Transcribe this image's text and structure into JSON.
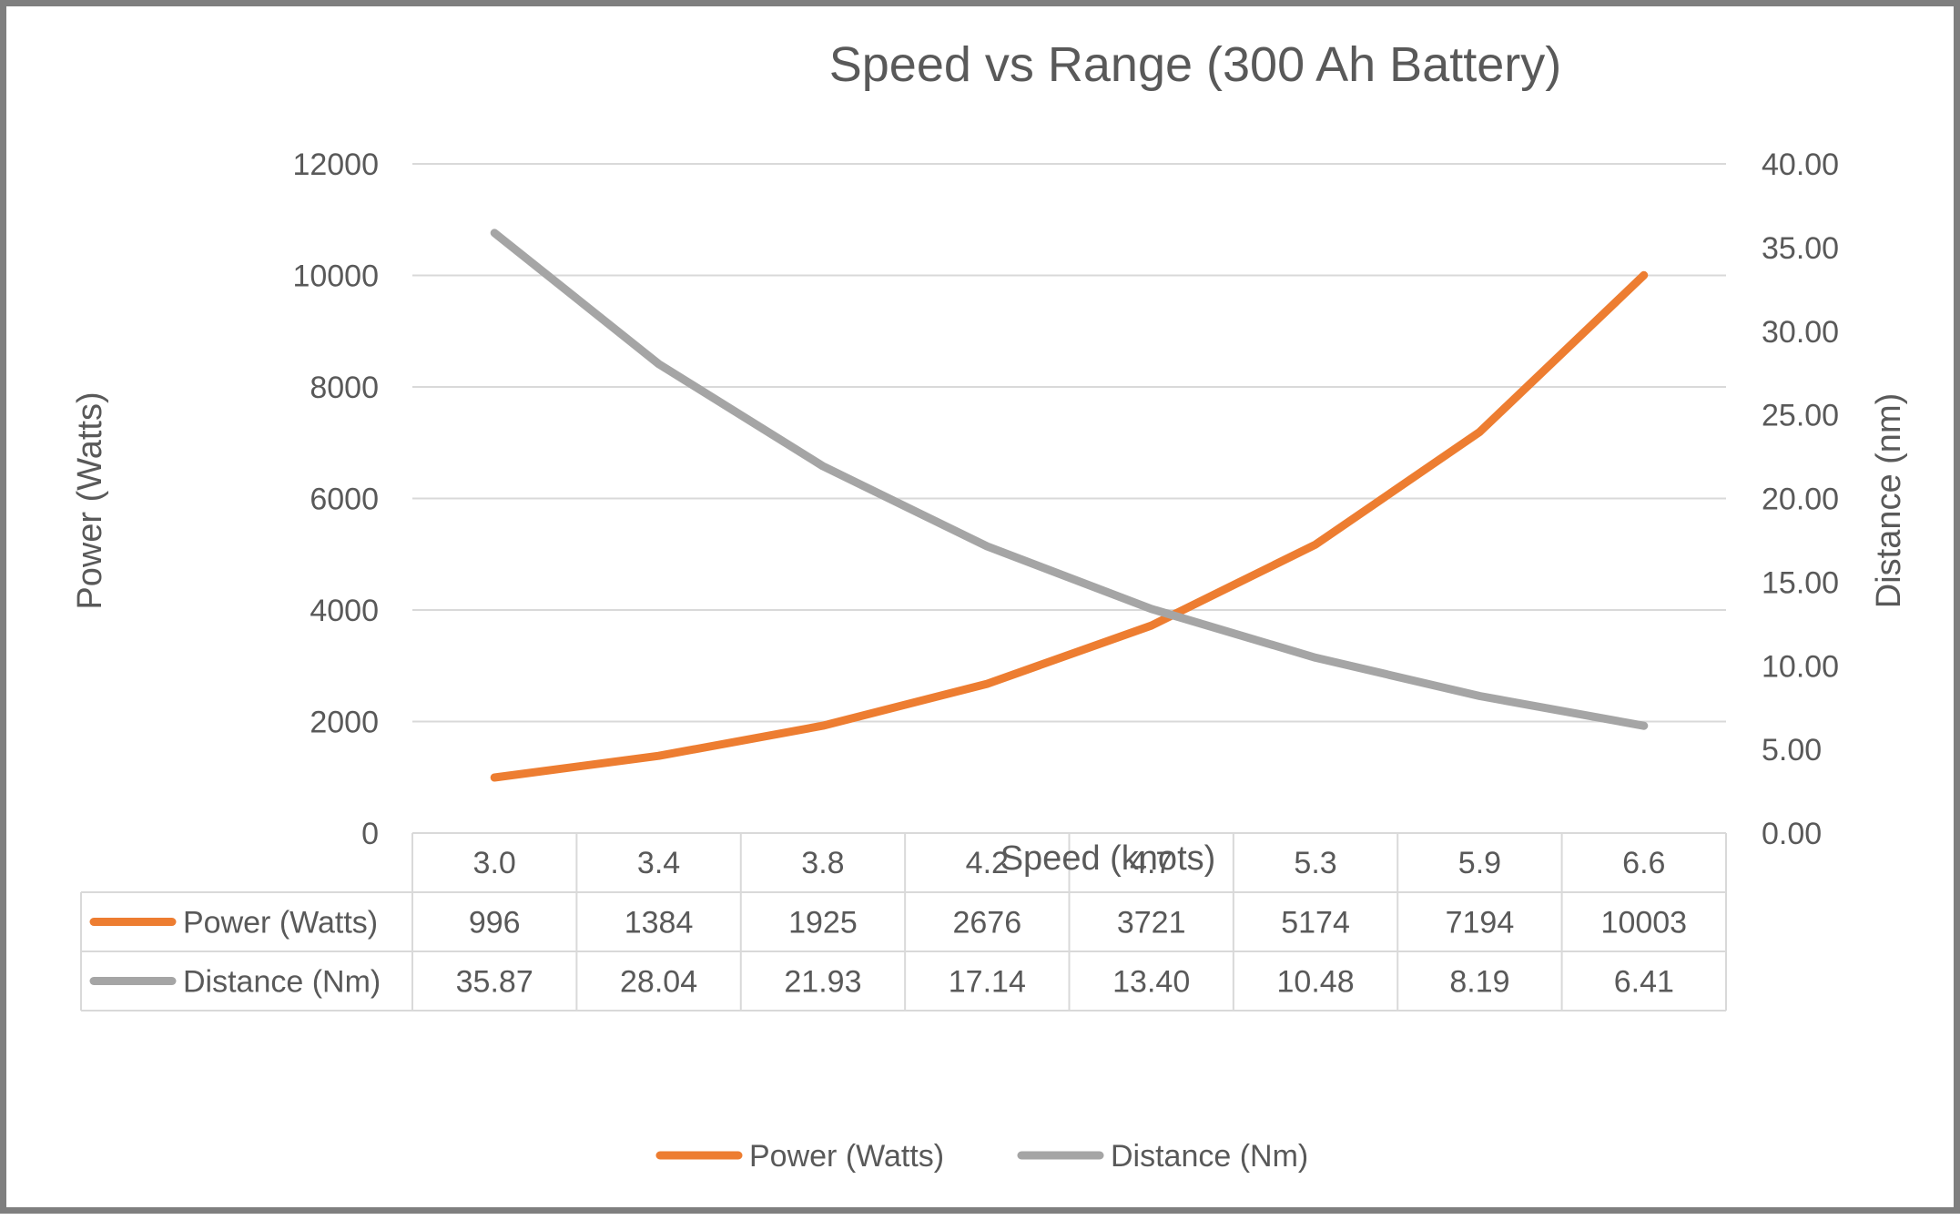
{
  "chart_data": {
    "type": "line",
    "title": "Speed vs Range (300 Ah Battery)",
    "xlabel": "Speed (knots)",
    "ylabel": "Power (Watts)",
    "y2label": "Distance (nm)",
    "categories": [
      "3.0",
      "3.4",
      "3.8",
      "4.2",
      "4.7",
      "5.3",
      "5.9",
      "6.6"
    ],
    "ylim": [
      0,
      12000
    ],
    "y2lim": [
      0,
      40
    ],
    "yticks": [
      "0",
      "2000",
      "4000",
      "6000",
      "8000",
      "10000",
      "12000"
    ],
    "y2ticks": [
      "0.00",
      "5.00",
      "10.00",
      "15.00",
      "20.00",
      "25.00",
      "30.00",
      "35.00",
      "40.00"
    ],
    "grid": true,
    "legend_position": "bottom",
    "data_table": true,
    "series": [
      {
        "name": "Power (Watts)",
        "axis": "left",
        "color": "#ed7d31",
        "values": [
          996,
          1384,
          1925,
          2676,
          3721,
          5174,
          7194,
          10003
        ],
        "labels": [
          "996",
          "1384",
          "1925",
          "2676",
          "3721",
          "5174",
          "7194",
          "10003"
        ]
      },
      {
        "name": "Distance (Nm)",
        "axis": "right",
        "color": "#a5a5a5",
        "values": [
          35.87,
          28.04,
          21.93,
          17.14,
          13.4,
          10.48,
          8.19,
          6.41
        ],
        "labels": [
          "35.87",
          "28.04",
          "21.93",
          "17.14",
          "13.40",
          "10.48",
          "8.19",
          "6.41"
        ]
      }
    ]
  }
}
